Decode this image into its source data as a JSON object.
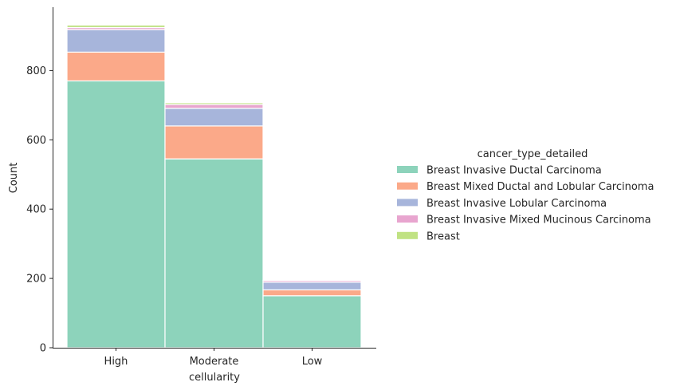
{
  "chart_data": {
    "type": "bar",
    "stacked": true,
    "xlabel": "cellularity",
    "ylabel": "Count",
    "categories": [
      "High",
      "Moderate",
      "Low"
    ],
    "ylim": [
      0,
      980
    ],
    "yticks": [
      0,
      200,
      400,
      600,
      800
    ],
    "legend_title": "cancer_type_detailed",
    "legend_position": "right",
    "series": [
      {
        "name": "Breast Invasive Ductal Carcinoma",
        "color": "#8dd3bb",
        "values": [
          770,
          545,
          150
        ]
      },
      {
        "name": "Breast Mixed Ductal and Lobular Carcinoma",
        "color": "#fba989",
        "values": [
          83,
          95,
          17
        ]
      },
      {
        "name": "Breast Invasive Lobular Carcinoma",
        "color": "#a7b5db",
        "values": [
          65,
          51,
          22
        ]
      },
      {
        "name": "Breast Invasive Mixed Mucinous Carcinoma",
        "color": "#e8a5cf",
        "values": [
          6,
          11,
          5
        ]
      },
      {
        "name": "Breast",
        "color": "#c0e283",
        "values": [
          7,
          5,
          1
        ]
      }
    ]
  }
}
